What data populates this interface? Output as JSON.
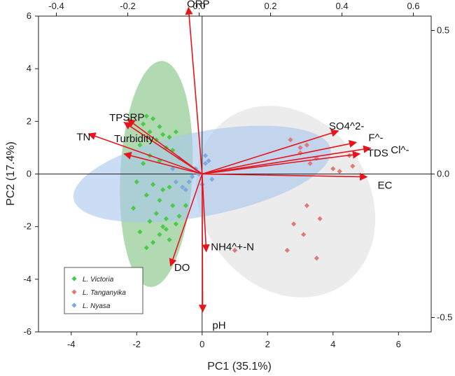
{
  "chart_data": {
    "type": "scatter",
    "subtype": "pca-biplot",
    "xlabel": "PC1 (35.1%)",
    "ylabel": "PC2 (17.4%)",
    "xlim": [
      -5,
      7
    ],
    "ylim": [
      -6,
      6
    ],
    "xticks": [
      -4,
      -2,
      0,
      2,
      4,
      6
    ],
    "yticks": [
      -6,
      -4,
      -2,
      0,
      2,
      4,
      6
    ],
    "loading_xlim": [
      -0.45,
      0.65
    ],
    "loading_ticks_top": [
      -0.4,
      -0.2,
      0.0,
      0.2,
      0.4,
      0.6
    ],
    "loading_ticks_top_labels": [
      "-0.4",
      "-0.2",
      "0.0",
      "0.2",
      "0.4",
      "0.6"
    ],
    "loading_ticks_right": [
      0.5,
      0.0,
      -0.5
    ],
    "loading_ticks_right_labels": [
      "0.5",
      "0.0",
      "-0.5"
    ],
    "grid": false,
    "legend_position": "bottom-left",
    "series": [
      {
        "name": "L. Victoria",
        "color": "#4CC94C",
        "ellipse_color": "#7EC27E",
        "ellipse": {
          "cx": -1.4,
          "cy": 0.0,
          "rx": 1.1,
          "ry": 4.3,
          "angle_deg": 3
        },
        "points": [
          [
            -1.7,
            2.2
          ],
          [
            -1.5,
            2.1
          ],
          [
            -1.8,
            1.9
          ],
          [
            -1.3,
            1.8
          ],
          [
            -1.6,
            1.6
          ],
          [
            -1.2,
            1.5
          ],
          [
            -1.0,
            1.4
          ],
          [
            -1.4,
            1.3
          ],
          [
            -0.8,
            1.6
          ],
          [
            -1.9,
            1.1
          ],
          [
            -1.1,
            1.0
          ],
          [
            -0.9,
            0.9
          ],
          [
            -1.6,
            0.7
          ],
          [
            -1.3,
            0.5
          ],
          [
            -1.8,
            0.4
          ],
          [
            -2.0,
            -0.3
          ],
          [
            -1.5,
            -0.4
          ],
          [
            -1.2,
            -0.6
          ],
          [
            -1.0,
            -0.5
          ],
          [
            -1.7,
            -0.8
          ],
          [
            -1.3,
            -1.0
          ],
          [
            -0.9,
            -1.2
          ],
          [
            -2.1,
            -1.3
          ],
          [
            -1.4,
            -1.5
          ],
          [
            -1.1,
            -1.7
          ],
          [
            -1.6,
            -1.8
          ],
          [
            -1.2,
            -2.0
          ],
          [
            -0.8,
            -1.9
          ],
          [
            -1.9,
            -2.2
          ],
          [
            -1.3,
            -2.3
          ],
          [
            -1.0,
            -2.5
          ],
          [
            -1.5,
            -2.6
          ],
          [
            -1.7,
            -2.8
          ],
          [
            -1.1,
            -2.1
          ],
          [
            -0.7,
            -1.6
          ],
          [
            -0.5,
            -1.2
          ]
        ]
      },
      {
        "name": "L. Tanganyika",
        "color": "#E07A7A",
        "ellipse_color": "#DCDCDC",
        "ellipse": {
          "cx": 2.55,
          "cy": -1.05,
          "rx": 2.55,
          "ry": 3.85,
          "angle_deg": -35
        },
        "points": [
          [
            3.0,
            1.0
          ],
          [
            3.2,
            1.1
          ],
          [
            2.7,
            1.3
          ],
          [
            3.5,
            0.6
          ],
          [
            3.3,
            0.4
          ],
          [
            4.0,
            0.2
          ],
          [
            4.2,
            0.1
          ],
          [
            4.5,
            0.7
          ],
          [
            4.6,
            0.3
          ],
          [
            3.2,
            -1.2
          ],
          [
            2.8,
            -1.9
          ],
          [
            3.6,
            -1.7
          ],
          [
            3.1,
            -2.3
          ],
          [
            2.6,
            -2.9
          ],
          [
            3.5,
            -3.2
          ],
          [
            1.0,
            -2.9
          ],
          [
            3.0,
            0.8
          ]
        ]
      },
      {
        "name": "L. Nyasa",
        "color": "#7FA8E0",
        "ellipse_color": "#A9C7EC",
        "ellipse": {
          "cx": 0.0,
          "cy": 0.0,
          "rx": 4.0,
          "ry": 1.6,
          "angle_deg": -11
        },
        "points": [
          [
            -0.8,
            -0.3
          ],
          [
            -0.6,
            -0.5
          ],
          [
            -0.4,
            -0.3
          ],
          [
            -0.2,
            0.2
          ],
          [
            0.1,
            0.4
          ],
          [
            -0.5,
            -0.6
          ],
          [
            -0.3,
            -0.1
          ],
          [
            0.0,
            -0.4
          ],
          [
            0.2,
            0.5
          ],
          [
            -0.7,
            0.6
          ],
          [
            -0.1,
            0.0
          ],
          [
            0.3,
            -0.2
          ],
          [
            0.1,
            0.7
          ],
          [
            -0.9,
            0.2
          ]
        ]
      }
    ],
    "loadings": [
      {
        "name": "ORP",
        "x": -0.03,
        "y": 0.58
      },
      {
        "name": "TP",
        "x": -0.21,
        "y": 0.18
      },
      {
        "name": "SRP",
        "x": -0.2,
        "y": 0.19
      },
      {
        "name": "TN",
        "x": -0.31,
        "y": 0.14
      },
      {
        "name": "Turbidity",
        "x": -0.21,
        "y": 0.07
      },
      {
        "name": "SO4^2-",
        "x": 0.39,
        "y": 0.15
      },
      {
        "name": "F^-",
        "x": 0.44,
        "y": 0.11
      },
      {
        "name": "Cl^-",
        "x": 0.48,
        "y": 0.09
      },
      {
        "name": "TDS",
        "x": 0.45,
        "y": 0.07
      },
      {
        "name": "EC",
        "x": 0.47,
        "y": -0.01
      },
      {
        "name": "NH4^+-N",
        "x": 0.02,
        "y": -0.27
      },
      {
        "name": "DO",
        "x": -0.08,
        "y": -0.32
      },
      {
        "name": "pH",
        "x": 0.01,
        "y": -0.48
      }
    ],
    "vector_color": "#E8141B",
    "loading_label_offsets": {
      "ORP": [
        0.3,
        0.0
      ],
      "TP": [
        -0.25,
        0.05
      ],
      "SRP": [
        0.18,
        -0.05
      ],
      "TN": [
        -0.15,
        -0.25
      ],
      "Turbidity": [
        0.3,
        0.45
      ],
      "SO4^2-": [
        0.25,
        0.05
      ],
      "F^-": [
        0.6,
        0.05
      ],
      "Cl^-": [
        0.9,
        -0.2
      ],
      "TDS": [
        0.55,
        -0.1
      ],
      "EC": [
        0.55,
        -0.45
      ],
      "NH4^+-N": [
        0.8,
        0.05
      ],
      "DO": [
        0.35,
        -0.2
      ],
      "pH": [
        0.5,
        -0.65
      ]
    }
  }
}
